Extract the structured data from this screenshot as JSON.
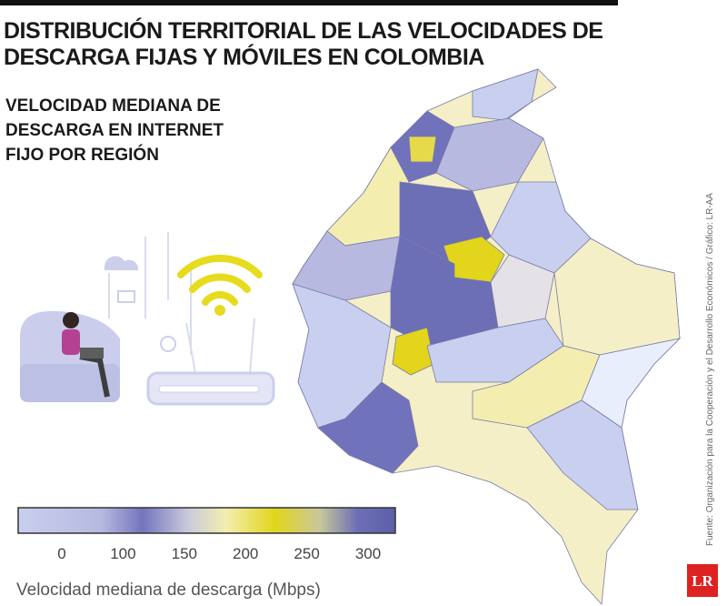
{
  "header": {
    "title": [
      "DISTRIBUCIÓN TERRITORIAL DE LAS VELOCIDADES DE",
      "DESCARGA FIJAS Y MÓVILES EN COLOMBIA"
    ],
    "subtitle": [
      "VELOCIDAD MEDIANA DE",
      "DESCARGA EN INTERNET",
      "FIJO POR REGIÓN"
    ]
  },
  "legend": {
    "ticks": [
      "0",
      "100",
      "150",
      "200",
      "250",
      "300"
    ],
    "label": "Velocidad mediana de descarga (Mbps)"
  },
  "source": "Fuente: Organización para la Cooperación y el Desarrollo Económicos / Gráfico: LR-AA",
  "logo": "LR"
}
